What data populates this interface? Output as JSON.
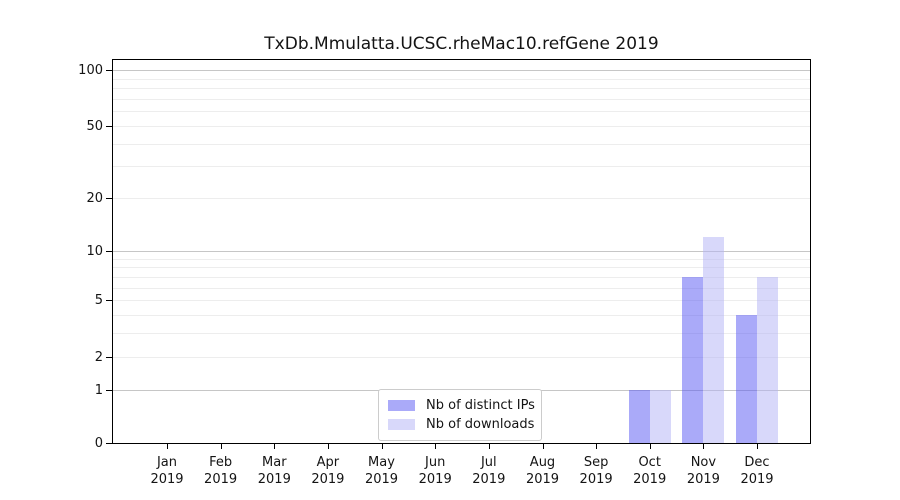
{
  "title": "TxDb.Mmulatta.UCSC.rheMac10.refGene 2019",
  "legend": {
    "items": [
      {
        "label": "Nb of distinct IPs",
        "color": "rgba(86,86,244,0.5)"
      },
      {
        "label": "Nb of downloads",
        "color": "rgba(178,178,246,0.5)"
      }
    ]
  },
  "chart_data": {
    "type": "bar",
    "title": "TxDb.Mmulatta.UCSC.rheMac10.refGene 2019",
    "categories": [
      "Jan 2019",
      "Feb 2019",
      "Mar 2019",
      "Apr 2019",
      "May 2019",
      "Jun 2019",
      "Jul 2019",
      "Aug 2019",
      "Sep 2019",
      "Oct 2019",
      "Nov 2019",
      "Dec 2019"
    ],
    "series": [
      {
        "name": "Nb of distinct IPs",
        "color": "rgba(86,86,244,0.5)",
        "values": [
          0,
          0,
          0,
          0,
          0,
          0,
          0,
          0,
          0,
          1,
          7,
          4
        ]
      },
      {
        "name": "Nb of downloads",
        "color": "rgba(178,178,246,0.5)",
        "values": [
          0,
          0,
          0,
          0,
          0,
          0,
          0,
          0,
          0,
          1,
          12,
          7
        ]
      }
    ],
    "xlabel": "",
    "ylabel": "",
    "yscale": "log1p",
    "ylim": [
      0,
      114
    ],
    "ytick_values": [
      100,
      50,
      20,
      10,
      5,
      2,
      1,
      0
    ],
    "ytick_labels": [
      "100",
      "50",
      "20",
      "10",
      "5",
      "2",
      "1",
      "0"
    ],
    "gridlines": {
      "major": [
        1,
        10,
        100
      ],
      "minor": [
        2,
        3,
        4,
        5,
        6,
        7,
        8,
        9,
        20,
        30,
        40,
        50,
        60,
        70,
        80,
        90
      ]
    },
    "grid": true,
    "legend_position": "bottom-center"
  }
}
